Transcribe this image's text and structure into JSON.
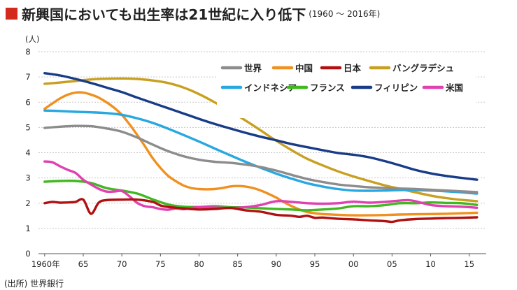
{
  "header": {
    "title": "新興国においても出生率は21世紀に入り低下",
    "subtitle": "(1960 ～ 2016年)",
    "accent_color": "#d42a1e"
  },
  "source": "(出所) 世界銀行",
  "chart_data": {
    "type": "line",
    "ylabel": "(人)",
    "ylim": [
      0,
      8
    ],
    "yticks": [
      0,
      1,
      2,
      3,
      4,
      5,
      6,
      7,
      8
    ],
    "xlim": [
      1959.2,
      2017.2
    ],
    "xticks": [
      {
        "value": 1960,
        "label": "1960年"
      },
      {
        "value": 1965,
        "label": "65"
      },
      {
        "value": 1970,
        "label": "70"
      },
      {
        "value": 1975,
        "label": "75"
      },
      {
        "value": 1980,
        "label": "80"
      },
      {
        "value": 1985,
        "label": "85"
      },
      {
        "value": 1990,
        "label": "90"
      },
      {
        "value": 1995,
        "label": "95"
      },
      {
        "value": 2000,
        "label": "00"
      },
      {
        "value": 2005,
        "label": "05"
      },
      {
        "value": 2010,
        "label": "10"
      },
      {
        "value": 2015,
        "label": "15"
      }
    ],
    "grid": true,
    "legend_position": "top-right",
    "series": [
      {
        "name": "世界",
        "color": "#8c8c8c",
        "x": [
          1960,
          1962,
          1964,
          1966,
          1968,
          1970,
          1972,
          1974,
          1976,
          1978,
          1980,
          1982,
          1984,
          1986,
          1988,
          1990,
          1992,
          1994,
          1996,
          1998,
          2000,
          2002,
          2004,
          2006,
          2008,
          2010,
          2012,
          2014,
          2016
        ],
        "y": [
          4.98,
          5.03,
          5.06,
          5.05,
          4.96,
          4.83,
          4.6,
          4.32,
          4.06,
          3.86,
          3.72,
          3.64,
          3.6,
          3.53,
          3.43,
          3.29,
          3.12,
          2.96,
          2.84,
          2.74,
          2.68,
          2.63,
          2.6,
          2.58,
          2.56,
          2.53,
          2.5,
          2.47,
          2.44
        ]
      },
      {
        "name": "中国",
        "color": "#f0901e",
        "x": [
          1960,
          1961,
          1962,
          1963,
          1964,
          1965,
          1966,
          1967,
          1968,
          1969,
          1970,
          1971,
          1972,
          1973,
          1974,
          1975,
          1976,
          1977,
          1978,
          1979,
          1980,
          1981,
          1982,
          1983,
          1984,
          1985,
          1986,
          1987,
          1988,
          1989,
          1990,
          1991,
          1992,
          1993,
          1994,
          1995,
          1996,
          1998,
          2000,
          2002,
          2004,
          2006,
          2008,
          2010,
          2012,
          2014,
          2016
        ],
        "y": [
          5.74,
          5.95,
          6.15,
          6.3,
          6.38,
          6.38,
          6.3,
          6.18,
          6.0,
          5.78,
          5.5,
          5.12,
          4.7,
          4.25,
          3.78,
          3.4,
          3.08,
          2.87,
          2.7,
          2.6,
          2.56,
          2.55,
          2.56,
          2.6,
          2.66,
          2.68,
          2.66,
          2.6,
          2.5,
          2.37,
          2.22,
          2.04,
          1.88,
          1.75,
          1.65,
          1.6,
          1.57,
          1.54,
          1.52,
          1.52,
          1.53,
          1.55,
          1.56,
          1.57,
          1.58,
          1.6,
          1.62
        ]
      },
      {
        "name": "日本",
        "color": "#b01010",
        "x": [
          1960,
          1961,
          1962,
          1963,
          1964,
          1965,
          1966,
          1967,
          1968,
          1970,
          1972,
          1974,
          1975,
          1976,
          1978,
          1980,
          1982,
          1984,
          1986,
          1988,
          1990,
          1992,
          1993,
          1994,
          1995,
          1996,
          1998,
          2000,
          2002,
          2004,
          2005,
          2006,
          2008,
          2010,
          2012,
          2014,
          2016
        ],
        "y": [
          2.0,
          2.05,
          2.02,
          2.03,
          2.05,
          2.14,
          1.58,
          2.02,
          2.12,
          2.14,
          2.14,
          2.05,
          1.91,
          1.85,
          1.79,
          1.75,
          1.77,
          1.81,
          1.72,
          1.66,
          1.54,
          1.5,
          1.46,
          1.5,
          1.42,
          1.43,
          1.38,
          1.36,
          1.32,
          1.29,
          1.26,
          1.32,
          1.37,
          1.39,
          1.41,
          1.42,
          1.44
        ]
      },
      {
        "name": "バングラデシュ",
        "color": "#c8a020",
        "x": [
          1960,
          1962,
          1964,
          1966,
          1968,
          1970,
          1972,
          1974,
          1976,
          1978,
          1980,
          1982,
          1984,
          1986,
          1988,
          1990,
          1992,
          1994,
          1996,
          1998,
          2000,
          2002,
          2004,
          2006,
          2008,
          2010,
          2012,
          2014,
          2016
        ],
        "y": [
          6.73,
          6.78,
          6.84,
          6.9,
          6.93,
          6.94,
          6.92,
          6.86,
          6.76,
          6.58,
          6.32,
          6.0,
          5.65,
          5.28,
          4.88,
          4.47,
          4.1,
          3.76,
          3.5,
          3.26,
          3.06,
          2.88,
          2.71,
          2.57,
          2.43,
          2.3,
          2.2,
          2.13,
          2.08
        ]
      },
      {
        "name": "インドネシア",
        "color": "#28a8e0",
        "x": [
          1960,
          1962,
          1964,
          1966,
          1968,
          1970,
          1972,
          1974,
          1976,
          1978,
          1980,
          1982,
          1984,
          1986,
          1988,
          1990,
          1992,
          1994,
          1996,
          1998,
          2000,
          2002,
          2004,
          2006,
          2008,
          2010,
          2012,
          2014,
          2016
        ],
        "y": [
          5.67,
          5.65,
          5.62,
          5.6,
          5.57,
          5.5,
          5.36,
          5.18,
          4.95,
          4.7,
          4.44,
          4.17,
          3.9,
          3.64,
          3.4,
          3.17,
          2.97,
          2.79,
          2.66,
          2.56,
          2.5,
          2.49,
          2.5,
          2.52,
          2.52,
          2.5,
          2.47,
          2.43,
          2.38
        ]
      },
      {
        "name": "フランス",
        "color": "#40b820",
        "x": [
          1960,
          1962,
          1964,
          1966,
          1968,
          1970,
          1972,
          1974,
          1976,
          1978,
          1980,
          1982,
          1984,
          1986,
          1988,
          1990,
          1992,
          1994,
          1996,
          1998,
          2000,
          2002,
          2004,
          2006,
          2008,
          2010,
          2012,
          2014,
          2016
        ],
        "y": [
          2.85,
          2.88,
          2.88,
          2.8,
          2.6,
          2.5,
          2.38,
          2.15,
          1.95,
          1.86,
          1.85,
          1.88,
          1.84,
          1.83,
          1.8,
          1.77,
          1.75,
          1.72,
          1.75,
          1.79,
          1.88,
          1.88,
          1.92,
          2.0,
          2.0,
          2.03,
          2.01,
          2.0,
          1.93
        ]
      },
      {
        "name": "フィリピン",
        "color": "#183c88",
        "x": [
          1960,
          1962,
          1964,
          1966,
          1968,
          1970,
          1972,
          1974,
          1976,
          1978,
          1980,
          1982,
          1984,
          1986,
          1988,
          1990,
          1992,
          1994,
          1996,
          1998,
          2000,
          2002,
          2004,
          2006,
          2008,
          2010,
          2012,
          2014,
          2016
        ],
        "y": [
          7.15,
          7.06,
          6.92,
          6.76,
          6.58,
          6.4,
          6.18,
          5.97,
          5.76,
          5.55,
          5.34,
          5.14,
          4.96,
          4.79,
          4.63,
          4.49,
          4.34,
          4.22,
          4.1,
          3.99,
          3.92,
          3.82,
          3.67,
          3.5,
          3.32,
          3.18,
          3.08,
          3.0,
          2.93
        ]
      },
      {
        "name": "米国",
        "color": "#e040b0",
        "x": [
          1960,
          1961,
          1962,
          1963,
          1964,
          1965,
          1966,
          1967,
          1968,
          1969,
          1970,
          1971,
          1972,
          1973,
          1974,
          1975,
          1976,
          1977,
          1978,
          1979,
          1980,
          1982,
          1984,
          1986,
          1988,
          1990,
          1992,
          1994,
          1996,
          1998,
          2000,
          2002,
          2004,
          2006,
          2007,
          2008,
          2010,
          2012,
          2014,
          2016
        ],
        "y": [
          3.65,
          3.62,
          3.46,
          3.32,
          3.2,
          2.93,
          2.74,
          2.57,
          2.46,
          2.46,
          2.48,
          2.27,
          2.01,
          1.88,
          1.84,
          1.77,
          1.74,
          1.79,
          1.76,
          1.81,
          1.84,
          1.83,
          1.81,
          1.84,
          1.93,
          2.08,
          2.05,
          2.0,
          1.98,
          2.0,
          2.06,
          2.02,
          2.05,
          2.1,
          2.12,
          2.08,
          1.93,
          1.88,
          1.86,
          1.82
        ]
      }
    ]
  }
}
